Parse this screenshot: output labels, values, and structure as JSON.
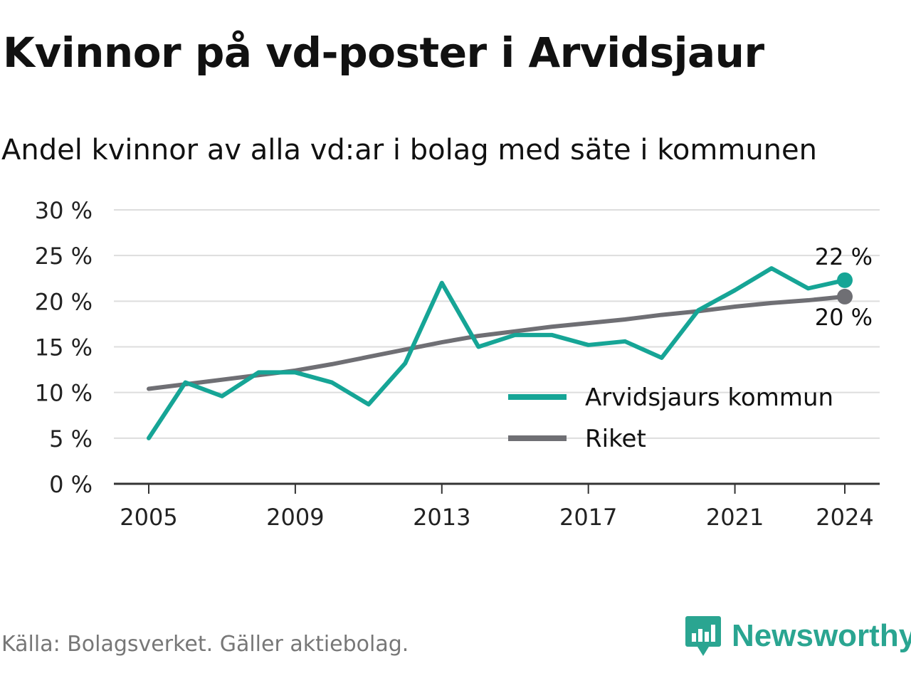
{
  "title": "Kvinnor på vd-poster i Arvidsjaur",
  "subtitle": "Andel kvinnor av alla vd:ar i bolag med säte i kommunen",
  "source": "Källa: Bolagsverket. Gäller aktiebolag.",
  "brand": {
    "name": "Newsworthy",
    "icon": "newsworthy-logo-icon"
  },
  "colors": {
    "kommun": "#16a596",
    "riket": "#6f6f74",
    "grid": "#dddddd",
    "axis": "#333333"
  },
  "chart_data": {
    "type": "line",
    "title": "Kvinnor på vd-poster i Arvidsjaur",
    "subtitle": "Andel kvinnor av alla vd:ar i bolag med säte i kommunen",
    "xlabel": "",
    "ylabel": "",
    "ylim": [
      0,
      30
    ],
    "xlim": [
      2004,
      2025
    ],
    "grid": true,
    "legend": "center-right",
    "y_ticks": [
      0,
      5,
      10,
      15,
      20,
      25,
      30
    ],
    "y_tick_labels": [
      "0 %",
      "5 %",
      "10 %",
      "15 %",
      "20 %",
      "25 %",
      "30 %"
    ],
    "x_ticks": [
      2005,
      2009,
      2013,
      2017,
      2021,
      2024
    ],
    "x_tick_labels": [
      "2005",
      "2009",
      "2013",
      "2017",
      "2021",
      "2024"
    ],
    "x": [
      2005,
      2006,
      2007,
      2008,
      2009,
      2010,
      2011,
      2012,
      2013,
      2014,
      2015,
      2016,
      2017,
      2018,
      2019,
      2020,
      2021,
      2022,
      2023,
      2024
    ],
    "series": [
      {
        "name": "Arvidsjaurs kommun",
        "color": "#16a596",
        "values": [
          5,
          11.1,
          9.6,
          12.2,
          12.2,
          11.1,
          8.7,
          13.2,
          22,
          15,
          16.3,
          16.3,
          15.2,
          15.6,
          13.8,
          19,
          21.2,
          23.6,
          21.4,
          22.3
        ],
        "end_label": "22 %"
      },
      {
        "name": "Riket",
        "color": "#6f6f74",
        "values": [
          10.4,
          10.9,
          11.4,
          11.9,
          12.4,
          13.1,
          13.9,
          14.7,
          15.5,
          16.2,
          16.7,
          17.2,
          17.6,
          18,
          18.5,
          18.9,
          19.4,
          19.8,
          20.1,
          20.5
        ],
        "end_label": "20 %"
      }
    ]
  }
}
